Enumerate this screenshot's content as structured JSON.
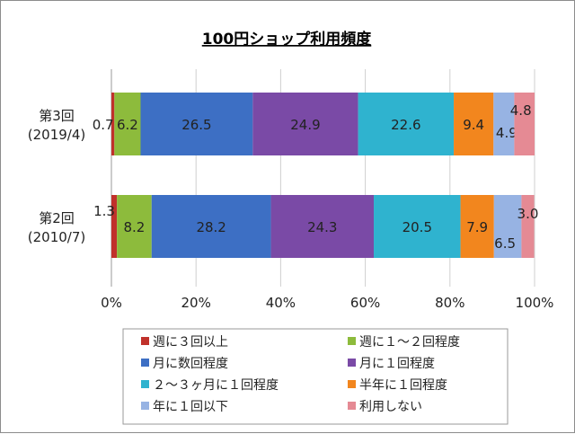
{
  "chart_data": {
    "type": "bar",
    "orientation": "horizontal",
    "stacked": true,
    "title": "100円ショップ利用頻度",
    "categories": [
      {
        "line1": "第3回",
        "line2": "(2019/4)"
      },
      {
        "line1": "第2回",
        "line2": "(2010/7)"
      }
    ],
    "series": [
      {
        "name": "週に３回以上",
        "color": "#c0312b",
        "values": [
          0.7,
          1.3
        ]
      },
      {
        "name": "週に１～２回程度",
        "color": "#8dbb3c",
        "values": [
          6.2,
          8.2
        ]
      },
      {
        "name": "月に数回程度",
        "color": "#3d6fc4",
        "values": [
          26.5,
          28.2
        ]
      },
      {
        "name": "月に１回程度",
        "color": "#7a4aa6",
        "values": [
          24.9,
          24.3
        ]
      },
      {
        "name": "２～３ヶ月に１回程度",
        "color": "#2fb3cf",
        "values": [
          22.6,
          20.5
        ]
      },
      {
        "name": "半年に１回程度",
        "color": "#f2861e",
        "values": [
          9.4,
          7.9
        ]
      },
      {
        "name": "年に１回以下",
        "color": "#97b3e3",
        "values": [
          4.9,
          6.5
        ]
      },
      {
        "name": "利用しない",
        "color": "#e58a94",
        "values": [
          4.8,
          3.0
        ]
      }
    ],
    "value_labels": [
      [
        "0.7",
        "6.2",
        "26.5",
        "24.9",
        "22.6",
        "9.4",
        "4.9",
        "4.8"
      ],
      [
        "1.3",
        "8.2",
        "28.2",
        "24.3",
        "20.5",
        "7.9",
        "6.5",
        "3.0"
      ]
    ],
    "xlim": [
      0,
      100
    ],
    "xticks": [
      "0%",
      "20%",
      "40%",
      "60%",
      "80%",
      "100%"
    ],
    "grid": true,
    "legend_position": "bottom"
  }
}
